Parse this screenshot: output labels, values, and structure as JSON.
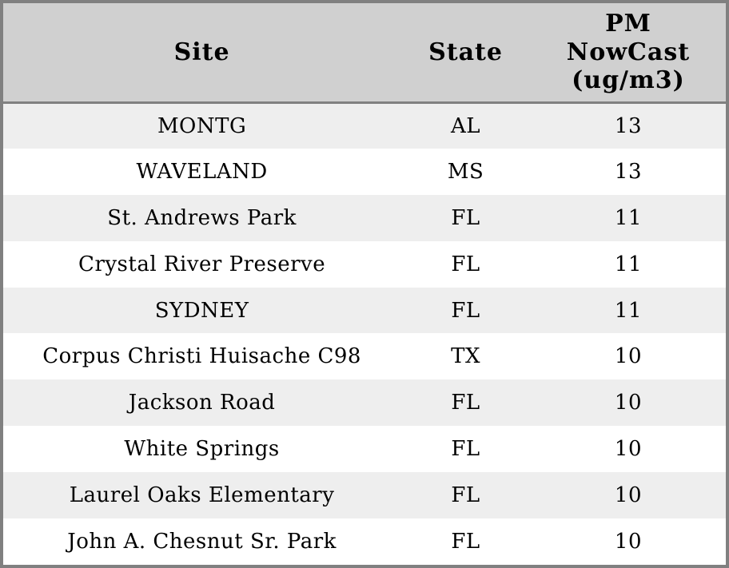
{
  "table": {
    "header": {
      "site": "Site",
      "state": "State",
      "pm_lines": [
        "PM",
        "NowCast",
        "(ug/m3)"
      ]
    },
    "rows": [
      {
        "site": "MONTG",
        "state": "AL",
        "pm": "13"
      },
      {
        "site": "WAVELAND",
        "state": "MS",
        "pm": "13"
      },
      {
        "site": "St. Andrews Park",
        "state": "FL",
        "pm": "11"
      },
      {
        "site": "Crystal River Preserve",
        "state": "FL",
        "pm": "11"
      },
      {
        "site": "SYDNEY",
        "state": "FL",
        "pm": "11"
      },
      {
        "site": "Corpus Christi Huisache C98",
        "state": "TX",
        "pm": "10"
      },
      {
        "site": "Jackson Road",
        "state": "FL",
        "pm": "10"
      },
      {
        "site": "White Springs",
        "state": "FL",
        "pm": "10"
      },
      {
        "site": "Laurel Oaks Elementary",
        "state": "FL",
        "pm": "10"
      },
      {
        "site": "John A. Chesnut Sr. Park",
        "state": "FL",
        "pm": "10"
      }
    ]
  },
  "colors": {
    "header_bg": "#d0d0d0",
    "row_alt_bg": "#eeeeee",
    "row_bg": "#ffffff",
    "border": "#808080",
    "text": "#000000"
  },
  "chart_data": {
    "type": "table",
    "title": "",
    "columns": [
      "Site",
      "State",
      "PM NowCast (ug/m3)"
    ],
    "rows": [
      [
        "MONTG",
        "AL",
        13
      ],
      [
        "WAVELAND",
        "MS",
        13
      ],
      [
        "St. Andrews Park",
        "FL",
        11
      ],
      [
        "Crystal River Preserve",
        "FL",
        11
      ],
      [
        "SYDNEY",
        "FL",
        11
      ],
      [
        "Corpus Christi Huisache C98",
        "TX",
        10
      ],
      [
        "Jackson Road",
        "FL",
        10
      ],
      [
        "White Springs",
        "FL",
        10
      ],
      [
        "Laurel Oaks Elementary",
        "FL",
        10
      ],
      [
        "John A. Chesnut Sr. Park",
        "FL",
        10
      ]
    ]
  }
}
